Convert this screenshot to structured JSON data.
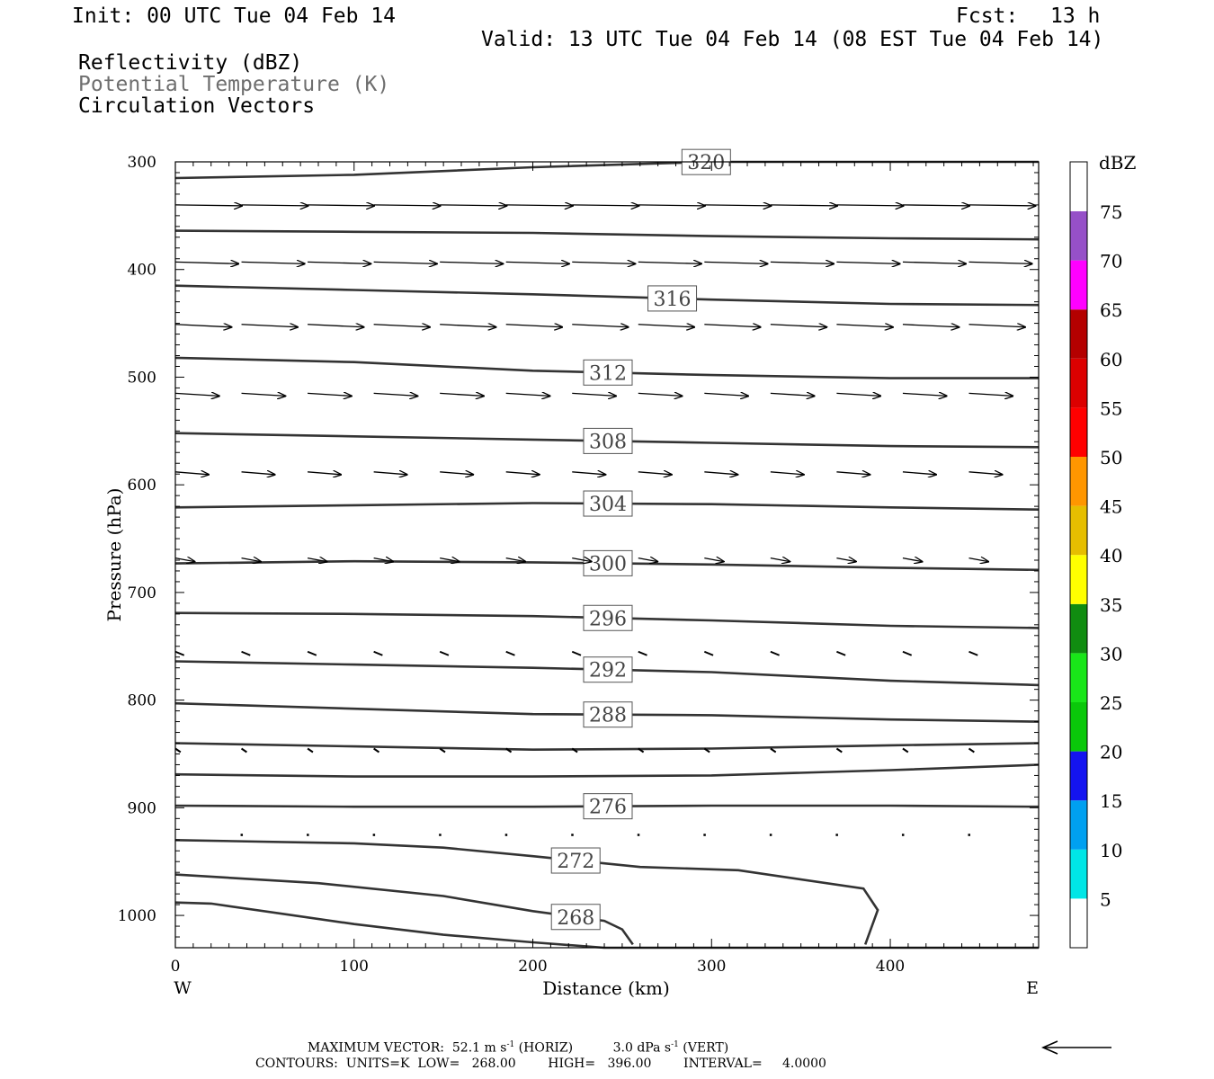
{
  "header": {
    "init": "Init: 00 UTC Tue 04 Feb 14",
    "fcst_label": "Fcst:",
    "fcst_value": "13 h",
    "valid": "Valid: 13 UTC Tue 04 Feb 14 (08 EST Tue 04 Feb 14)",
    "field1": "Reflectivity (dBZ)",
    "field2": "Potential Temperature (K)",
    "field3": "Circulation Vectors"
  },
  "chart_data": {
    "type": "cross-section",
    "xlabel": "Distance (km)",
    "ylabel": "Pressure (hPa)",
    "x_ticks": [
      0,
      100,
      200,
      300,
      400
    ],
    "y_ticks": [
      300,
      400,
      500,
      600,
      700,
      800,
      900,
      1000
    ],
    "xlim": [
      0,
      483
    ],
    "ylim": [
      1030,
      300
    ],
    "left_label": "W",
    "right_label": "E",
    "theta_contours": [
      {
        "label": "320",
        "label_x": 297,
        "points": [
          [
            0,
            315
          ],
          [
            100,
            312
          ],
          [
            200,
            305
          ],
          [
            300,
            300
          ],
          [
            400,
            300
          ],
          [
            483,
            300
          ]
        ]
      },
      {
        "label": "",
        "label_x": null,
        "points": [
          [
            0,
            364
          ],
          [
            100,
            365
          ],
          [
            200,
            366
          ],
          [
            300,
            369
          ],
          [
            400,
            371
          ],
          [
            483,
            372
          ]
        ]
      },
      {
        "label": "316",
        "label_x": 278,
        "points": [
          [
            0,
            415
          ],
          [
            100,
            419
          ],
          [
            200,
            423
          ],
          [
            300,
            428
          ],
          [
            400,
            432
          ],
          [
            483,
            433
          ]
        ]
      },
      {
        "label": "312",
        "label_x": 242,
        "points": [
          [
            0,
            482
          ],
          [
            100,
            486
          ],
          [
            200,
            494
          ],
          [
            300,
            498
          ],
          [
            400,
            501
          ],
          [
            483,
            501
          ]
        ]
      },
      {
        "label": "308",
        "label_x": 242,
        "points": [
          [
            0,
            552
          ],
          [
            100,
            555
          ],
          [
            200,
            558
          ],
          [
            300,
            561
          ],
          [
            400,
            564
          ],
          [
            483,
            565
          ]
        ]
      },
      {
        "label": "304",
        "label_x": 242,
        "points": [
          [
            0,
            621
          ],
          [
            100,
            619
          ],
          [
            200,
            617
          ],
          [
            300,
            618
          ],
          [
            400,
            621
          ],
          [
            483,
            623
          ]
        ]
      },
      {
        "label": "300",
        "label_x": 242,
        "points": [
          [
            0,
            673
          ],
          [
            100,
            671
          ],
          [
            200,
            672
          ],
          [
            300,
            674
          ],
          [
            400,
            677
          ],
          [
            483,
            679
          ]
        ]
      },
      {
        "label": "296",
        "label_x": 242,
        "points": [
          [
            0,
            719
          ],
          [
            100,
            720
          ],
          [
            200,
            722
          ],
          [
            300,
            726
          ],
          [
            400,
            731
          ],
          [
            483,
            733
          ]
        ]
      },
      {
        "label": "292",
        "label_x": 242,
        "points": [
          [
            0,
            764
          ],
          [
            100,
            767
          ],
          [
            200,
            770
          ],
          [
            300,
            774
          ],
          [
            400,
            782
          ],
          [
            483,
            786
          ]
        ]
      },
      {
        "label": "288",
        "label_x": 242,
        "points": [
          [
            0,
            803
          ],
          [
            100,
            808
          ],
          [
            200,
            813
          ],
          [
            300,
            814
          ],
          [
            400,
            818
          ],
          [
            483,
            820
          ]
        ]
      },
      {
        "label": "",
        "label_x": null,
        "points": [
          [
            0,
            840
          ],
          [
            100,
            843
          ],
          [
            200,
            846
          ],
          [
            300,
            845
          ],
          [
            400,
            842
          ],
          [
            483,
            840
          ]
        ]
      },
      {
        "label": "",
        "label_x": null,
        "points": [
          [
            0,
            869
          ],
          [
            100,
            871
          ],
          [
            200,
            871
          ],
          [
            300,
            870
          ],
          [
            400,
            865
          ],
          [
            483,
            860
          ]
        ]
      },
      {
        "label": "276",
        "label_x": 242,
        "points": [
          [
            0,
            898
          ],
          [
            100,
            899
          ],
          [
            200,
            899
          ],
          [
            300,
            898
          ],
          [
            400,
            898
          ],
          [
            483,
            899
          ]
        ]
      },
      {
        "label": "272",
        "label_x": 224,
        "points": [
          [
            0,
            930
          ],
          [
            100,
            933
          ],
          [
            150,
            937
          ],
          [
            200,
            945
          ],
          [
            260,
            955
          ],
          [
            315,
            958
          ],
          [
            385,
            975
          ],
          [
            393,
            995
          ],
          [
            386,
            1027
          ]
        ]
      },
      {
        "label": "268",
        "label_x": 224,
        "points": [
          [
            0,
            962
          ],
          [
            80,
            970
          ],
          [
            150,
            982
          ],
          [
            200,
            996
          ],
          [
            240,
            1005
          ],
          [
            250,
            1013
          ],
          [
            256,
            1027
          ]
        ]
      },
      {
        "label": "",
        "label_x": null,
        "points": [
          [
            0,
            988
          ],
          [
            20,
            989
          ],
          [
            100,
            1008
          ],
          [
            150,
            1018
          ],
          [
            200,
            1025
          ],
          [
            240,
            1030
          ],
          [
            483,
            1030
          ]
        ]
      }
    ],
    "vectors": [
      {
        "p": 340,
        "xs": [
          0,
          37,
          74,
          111,
          148,
          185,
          222,
          259,
          296,
          333,
          370,
          407,
          444
        ],
        "u": 38,
        "w": 1,
        "x_end": 483
      },
      {
        "p": 393,
        "xs": [
          0,
          37,
          74,
          111,
          148,
          185,
          222,
          259,
          296,
          333,
          370,
          407,
          444
        ],
        "u": 36,
        "w": 2
      },
      {
        "p": 451,
        "xs": [
          0,
          37,
          74,
          111,
          148,
          185,
          222,
          259,
          296,
          333,
          370,
          407,
          444
        ],
        "u": 32,
        "w": 3
      },
      {
        "p": 515,
        "xs": [
          0,
          37,
          74,
          111,
          148,
          185,
          222,
          259,
          296,
          333,
          370,
          407,
          444
        ],
        "u": 25,
        "w": 3
      },
      {
        "p": 588,
        "xs": [
          0,
          37,
          74,
          111,
          148,
          185,
          222,
          259,
          296,
          333,
          370,
          407,
          444
        ],
        "u": 19,
        "w": 3
      },
      {
        "p": 668,
        "xs": [
          0,
          37,
          74,
          111,
          148,
          185,
          222,
          259,
          296,
          333,
          370,
          407,
          444
        ],
        "u": 11,
        "w": 4
      },
      {
        "p": 755,
        "xs": [
          0,
          37,
          74,
          111,
          148,
          185,
          222,
          259,
          296,
          333,
          370,
          407,
          444
        ],
        "u": 5,
        "w": 4
      },
      {
        "p": 845,
        "xs": [
          0,
          37,
          74,
          111,
          148,
          185,
          222,
          259,
          296,
          333,
          370,
          407,
          444
        ],
        "u": 3,
        "w": 4
      },
      {
        "p": 925,
        "xs": [
          37,
          74,
          111,
          148,
          185,
          222,
          259,
          296,
          333,
          370,
          407,
          444
        ],
        "u": 1,
        "w": 4
      }
    ],
    "colorbar": {
      "unit": "dBZ",
      "labels": [
        "5",
        "10",
        "15",
        "20",
        "25",
        "30",
        "35",
        "40",
        "45",
        "50",
        "55",
        "60",
        "65",
        "70",
        "75"
      ],
      "colors": [
        "#00e6e6",
        "#00a0f0",
        "#1414f0",
        "#0ac80a",
        "#19e619",
        "#108c10",
        "#ffff00",
        "#e6be00",
        "#ff9600",
        "#ff0000",
        "#dc0000",
        "#b40000",
        "#ff00ff",
        "#9650c8"
      ]
    }
  },
  "footer": {
    "max_vector_label": "MAXIMUM VECTOR:",
    "max_vector_horiz": "52.1 m s",
    "horiz_tag": "(HORIZ)",
    "max_vector_vert": "3.0 dPa s",
    "vert_tag": "(VERT)",
    "exp": "-1",
    "contours": "CONTOURS:  UNITS=K  LOW=   268.00        HIGH=   396.00        INTERVAL=     4.0000"
  }
}
